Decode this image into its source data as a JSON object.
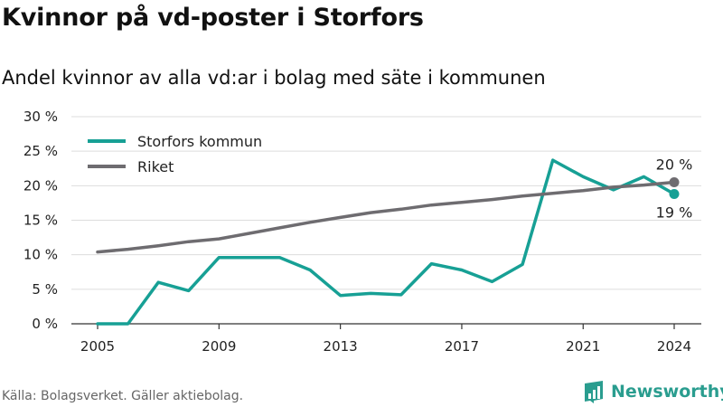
{
  "header": {
    "title": "Kvinnor på vd-poster i Storfors",
    "subtitle": "Andel kvinnor av alla vd:ar i bolag med säte i kommunen"
  },
  "footer": {
    "source": "Källa: Bolagsverket. Gäller aktiebolag.",
    "logo_text": "Newsworthy"
  },
  "colors": {
    "storfors": "#17a095",
    "riket": "#6e6c70",
    "grid": "#dddddd",
    "brand": "#2a9d8f"
  },
  "chart_data": {
    "type": "line",
    "title": "Kvinnor på vd-poster i Storfors",
    "subtitle": "Andel kvinnor av alla vd:ar i bolag med säte i kommunen",
    "x": [
      2005,
      2006,
      2007,
      2008,
      2009,
      2010,
      2011,
      2012,
      2013,
      2014,
      2015,
      2016,
      2017,
      2018,
      2019,
      2020,
      2021,
      2022,
      2023,
      2024
    ],
    "series": [
      {
        "name": "Storfors kommun",
        "values": [
          0,
          0,
          6,
          4.8,
          9.6,
          9.6,
          9.6,
          7.8,
          4.1,
          4.4,
          4.2,
          8.7,
          7.8,
          6.1,
          8.6,
          23.7,
          21.3,
          19.4,
          21.3,
          18.8
        ]
      },
      {
        "name": "Riket",
        "values": [
          10.4,
          10.8,
          11.3,
          11.9,
          12.3,
          13.1,
          13.9,
          14.7,
          15.4,
          16.1,
          16.6,
          17.2,
          17.6,
          18.0,
          18.5,
          18.9,
          19.3,
          19.8,
          20.1,
          20.5
        ]
      }
    ],
    "x_ticks": [
      2005,
      2009,
      2013,
      2017,
      2021,
      2024
    ],
    "y_ticks": [
      0,
      5,
      10,
      15,
      20,
      25,
      30
    ],
    "y_tick_labels": [
      "0 %",
      "5 %",
      "10 %",
      "15 %",
      "20 %",
      "25 %",
      "30 %"
    ],
    "ylim": [
      0,
      30
    ],
    "xlim": [
      2005,
      2024
    ],
    "end_labels": {
      "storfors": "19 %",
      "riket": "20 %"
    },
    "legend": {
      "position": "top-left",
      "entries": [
        "Storfors kommun",
        "Riket"
      ]
    },
    "grid": true
  }
}
